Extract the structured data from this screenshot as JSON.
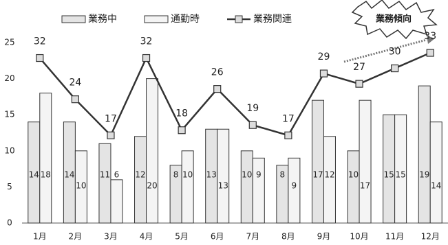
{
  "chart_data": {
    "type": "bar-line",
    "annotation": "業務傾向",
    "categories": [
      "1月",
      "2月",
      "3月",
      "4月",
      "5月",
      "6月",
      "7月",
      "8月",
      "9月",
      "10月",
      "11月",
      "12月"
    ],
    "series": [
      {
        "name": "業務中",
        "type": "bar",
        "color": "#e4e4e4",
        "values": [
          14,
          14,
          11,
          12,
          8,
          13,
          10,
          8,
          17,
          10,
          15,
          19
        ]
      },
      {
        "name": "通勤時",
        "type": "bar",
        "color": "#f4f4f4",
        "values": [
          18,
          10,
          6,
          20,
          10,
          13,
          9,
          9,
          12,
          17,
          15,
          14
        ]
      },
      {
        "name": "業務関連",
        "type": "line",
        "axis": "y2",
        "color": "#333333",
        "values": [
          32,
          24,
          17,
          32,
          18,
          26,
          19,
          17,
          29,
          27,
          30,
          33
        ]
      }
    ],
    "ylim": [
      0,
      25
    ],
    "yticks": [
      0,
      5,
      10,
      15,
      20,
      25
    ],
    "y2lim": [
      0,
      35
    ],
    "grid": false,
    "legend": "top"
  }
}
